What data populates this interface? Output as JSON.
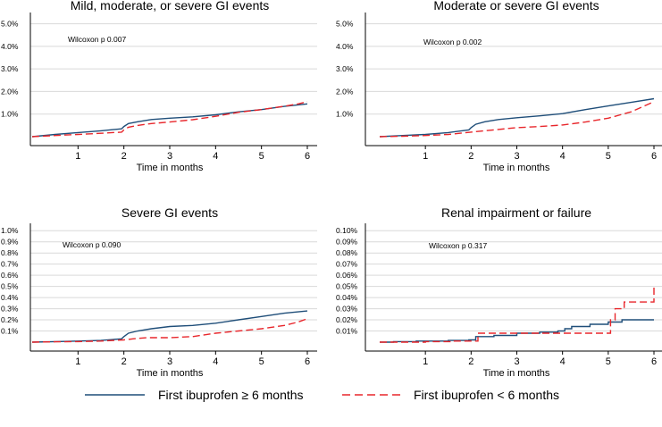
{
  "legend": {
    "items": [
      {
        "name": "First ibuprofen ≥ 6 months",
        "color": "#1f4e79",
        "dash": "solid"
      },
      {
        "name": "First ibuprofen < 6 months",
        "color": "#e8262b",
        "dash": "dashed"
      }
    ]
  },
  "chart_data": [
    {
      "type": "line",
      "title": "Mild, moderate, or severe GI events",
      "xlabel": "Time in months",
      "annotation": "Wilcoxon p 0.007",
      "xlim": [
        0,
        6
      ],
      "ylim": [
        0,
        5.3
      ],
      "xticks": [
        "1",
        "2",
        "3",
        "4",
        "5",
        "6"
      ],
      "yticks": [
        {
          "v": 1,
          "label": "1.0%"
        },
        {
          "v": 2,
          "label": "2.0%"
        },
        {
          "v": 3,
          "label": "3.0%"
        },
        {
          "v": 4,
          "label": "4.0%"
        },
        {
          "v": 5,
          "label": "5.0%"
        }
      ],
      "series": [
        {
          "name": "First ibuprofen ≥ 6 months",
          "x": [
            0,
            0.5,
            1,
            1.5,
            1.95,
            2.0,
            2.1,
            2.3,
            2.6,
            3,
            3.5,
            4,
            4.5,
            5,
            5.5,
            6
          ],
          "y": [
            0,
            0.1,
            0.18,
            0.26,
            0.35,
            0.45,
            0.58,
            0.66,
            0.76,
            0.82,
            0.88,
            0.97,
            1.1,
            1.2,
            1.34,
            1.45
          ]
        },
        {
          "name": "First ibuprofen < 6 months",
          "x": [
            0,
            0.5,
            1,
            1.5,
            1.95,
            2.0,
            2.1,
            2.3,
            2.6,
            3,
            3.5,
            4,
            4.5,
            5,
            5.5,
            5.8,
            6
          ],
          "y": [
            0,
            0.05,
            0.1,
            0.15,
            0.2,
            0.3,
            0.42,
            0.5,
            0.58,
            0.65,
            0.75,
            0.9,
            1.08,
            1.2,
            1.35,
            1.45,
            1.55
          ]
        }
      ]
    },
    {
      "type": "line",
      "title": "Moderate or severe GI events",
      "xlabel": "Time in months",
      "annotation": "Wilcoxon p 0.002",
      "xlim": [
        0,
        6
      ],
      "ylim": [
        0,
        5.3
      ],
      "xticks": [
        "1",
        "2",
        "3",
        "4",
        "5",
        "6"
      ],
      "yticks": [
        {
          "v": 1,
          "label": "1.0%"
        },
        {
          "v": 2,
          "label": "2.0%"
        },
        {
          "v": 3,
          "label": "3.0%"
        },
        {
          "v": 4,
          "label": "4.0%"
        },
        {
          "v": 5,
          "label": "5.0%"
        }
      ],
      "series": [
        {
          "name": "First ibuprofen ≥ 6 months",
          "x": [
            0,
            0.5,
            1,
            1.5,
            1.95,
            2.0,
            2.1,
            2.3,
            2.6,
            3,
            3.5,
            4,
            4.5,
            5,
            5.5,
            6
          ],
          "y": [
            0,
            0.05,
            0.1,
            0.18,
            0.3,
            0.4,
            0.55,
            0.66,
            0.76,
            0.84,
            0.92,
            1.02,
            1.2,
            1.36,
            1.52,
            1.68
          ]
        },
        {
          "name": "First ibuprofen < 6 months",
          "x": [
            0,
            0.5,
            1,
            1.5,
            2,
            2.5,
            3,
            3.5,
            4,
            4.5,
            5,
            5.5,
            6
          ],
          "y": [
            0,
            0.02,
            0.05,
            0.1,
            0.2,
            0.3,
            0.4,
            0.45,
            0.52,
            0.65,
            0.82,
            1.1,
            1.55
          ]
        }
      ]
    },
    {
      "type": "line",
      "title": "Severe GI events",
      "xlabel": "Time in months",
      "annotation": "Wilcoxon p 0.090",
      "xlim": [
        0,
        6
      ],
      "ylim": [
        0,
        1.05
      ],
      "xticks": [
        "1",
        "2",
        "3",
        "4",
        "5",
        "6"
      ],
      "yticks": [
        {
          "v": 0.1,
          "label": "0.1%"
        },
        {
          "v": 0.2,
          "label": "0.2%"
        },
        {
          "v": 0.3,
          "label": "0.3%"
        },
        {
          "v": 0.4,
          "label": "0.4%"
        },
        {
          "v": 0.5,
          "label": "0.5%"
        },
        {
          "v": 0.6,
          "label": "0.6%"
        },
        {
          "v": 0.7,
          "label": "0.7%"
        },
        {
          "v": 0.8,
          "label": "0.8%"
        },
        {
          "v": 0.9,
          "label": "0.9%"
        },
        {
          "v": 1.0,
          "label": "1.0%"
        }
      ],
      "series": [
        {
          "name": "First ibuprofen ≥ 6 months",
          "x": [
            0,
            0.5,
            1,
            1.5,
            1.95,
            2.0,
            2.1,
            2.3,
            2.6,
            3,
            3.5,
            4,
            4.5,
            5,
            5.5,
            6
          ],
          "y": [
            0,
            0.005,
            0.01,
            0.015,
            0.03,
            0.05,
            0.08,
            0.1,
            0.12,
            0.14,
            0.15,
            0.17,
            0.2,
            0.23,
            0.26,
            0.28
          ]
        },
        {
          "name": "First ibuprofen < 6 months",
          "x": [
            0,
            0.5,
            1,
            1.5,
            2,
            2.2,
            2.5,
            3,
            3.5,
            4,
            4.5,
            5,
            5.5,
            5.8,
            6
          ],
          "y": [
            0,
            0.003,
            0.005,
            0.01,
            0.02,
            0.03,
            0.04,
            0.04,
            0.05,
            0.08,
            0.1,
            0.12,
            0.15,
            0.18,
            0.21
          ]
        }
      ]
    },
    {
      "type": "line",
      "title": "Renal impairment or failure",
      "xlabel": "Time in months",
      "annotation": "Wilcoxon p 0.317",
      "xlim": [
        0,
        6
      ],
      "ylim": [
        0,
        0.105
      ],
      "xticks": [
        "1",
        "2",
        "3",
        "4",
        "5",
        "6"
      ],
      "yticks": [
        {
          "v": 0.01,
          "label": "0.01%"
        },
        {
          "v": 0.02,
          "label": "0.02%"
        },
        {
          "v": 0.03,
          "label": "0.03%"
        },
        {
          "v": 0.04,
          "label": "0.04%"
        },
        {
          "v": 0.05,
          "label": "0.05%"
        },
        {
          "v": 0.06,
          "label": "0.06%"
        },
        {
          "v": 0.07,
          "label": "0.07%"
        },
        {
          "v": 0.08,
          "label": "0.08%"
        },
        {
          "v": 0.09,
          "label": "0.09%"
        },
        {
          "v": 0.1,
          "label": "0.10%"
        }
      ],
      "series": [
        {
          "name": "First ibuprofen ≥ 6 months",
          "step": true,
          "x": [
            0,
            0.3,
            0.8,
            1.5,
            1.95,
            2.1,
            2.5,
            3.0,
            3.5,
            3.9,
            4.05,
            4.2,
            4.6,
            5.0,
            5.3,
            6.0
          ],
          "y": [
            0,
            0.0005,
            0.001,
            0.0015,
            0.002,
            0.005,
            0.006,
            0.008,
            0.009,
            0.01,
            0.012,
            0.014,
            0.016,
            0.018,
            0.02,
            0.02
          ]
        },
        {
          "name": "First ibuprofen < 6 months",
          "step": true,
          "x": [
            0,
            1.0,
            1.6,
            2.15,
            2.9,
            4.0,
            5.05,
            5.15,
            5.35,
            6.0
          ],
          "y": [
            0,
            0.0005,
            0.001,
            0.008,
            0.008,
            0.008,
            0.02,
            0.03,
            0.036,
            0.05
          ]
        }
      ]
    }
  ]
}
